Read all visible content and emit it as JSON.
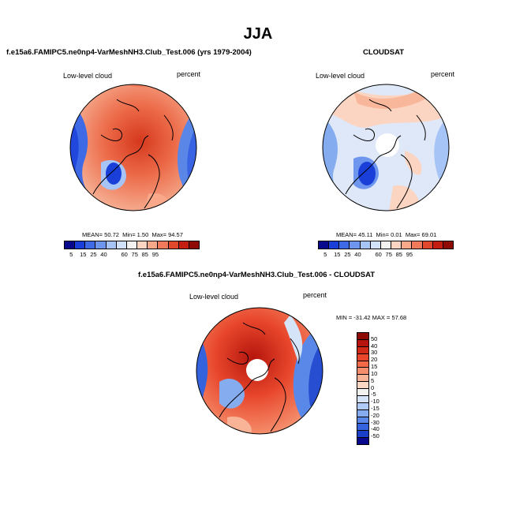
{
  "title": "JJA",
  "panels": {
    "model": {
      "title": "f.e15a6.FAMIPC5.ne0np4-VarMeshNH3.Club_Test.006 (yrs 1979-2004)",
      "variable": "Low-level cloud",
      "units": "percent",
      "stats": {
        "mean_label": "MEAN=",
        "mean": "50.72",
        "min_label": "Min=",
        "min": "1.50",
        "max_label": "Max=",
        "max": "94.57"
      }
    },
    "obs": {
      "title": "CLOUDSAT",
      "variable": "Low-level cloud",
      "units": "percent",
      "stats": {
        "mean_label": "MEAN=",
        "mean": "45.11",
        "min_label": "Min=",
        "min": "0.01",
        "max_label": "Max=",
        "max": "69.01"
      }
    },
    "diff": {
      "title": "f.e15a6.FAMIPC5.ne0np4-VarMeshNH3.Club_Test.006 - CLOUDSAT",
      "variable": "Low-level cloud",
      "units": "percent",
      "stats_text": "MIN = -31.42 MAX =  57.68"
    }
  },
  "colorbar_main": {
    "labels": [
      "5",
      "15",
      "25",
      "40",
      "60",
      "75",
      "85",
      "95"
    ],
    "colors": [
      "#08088c",
      "#1a3fd9",
      "#3f6ae6",
      "#6e96ee",
      "#a6c4f5",
      "#d2e2fa",
      "#f4f2f0",
      "#fcd6c2",
      "#f9a98a",
      "#f27a5c",
      "#e0472d",
      "#c41e13",
      "#8f0a05"
    ]
  },
  "colorbar_diff": {
    "labels": [
      "50",
      "40",
      "30",
      "20",
      "15",
      "10",
      "5",
      "0",
      "-5",
      "-10",
      "-15",
      "-20",
      "-30",
      "-40",
      "-50"
    ],
    "colors": [
      "#8f0a05",
      "#b5150c",
      "#d22a18",
      "#e8472c",
      "#f26a48",
      "#f58e6c",
      "#f9b497",
      "#fcd8c4",
      "#f4f2f0",
      "#d6e4fa",
      "#b0cbf6",
      "#86acf0",
      "#5a88e8",
      "#3563dd",
      "#1a3fc9",
      "#08088c"
    ]
  }
}
